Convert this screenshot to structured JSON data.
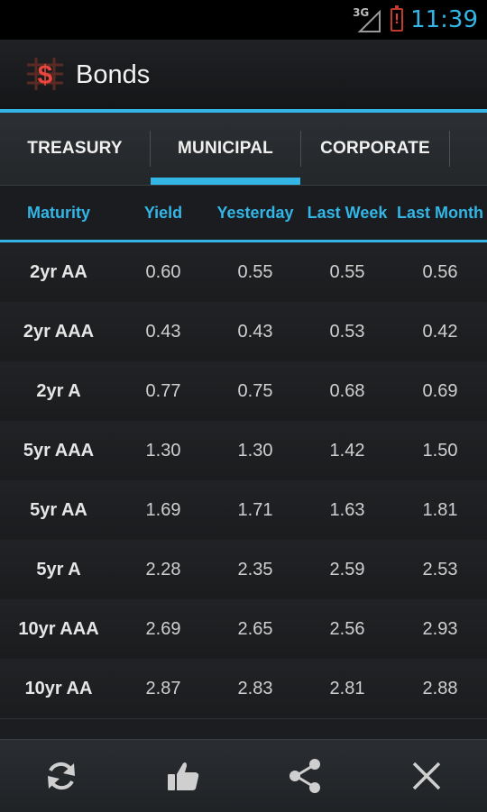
{
  "status_bar": {
    "network": "3G",
    "battery_mark": "!",
    "time": "11:39"
  },
  "app": {
    "title": "Bonds",
    "logo_symbol": "$"
  },
  "tabs": [
    {
      "label": "TREASURY",
      "selected": false
    },
    {
      "label": "MUNICIPAL",
      "selected": true
    },
    {
      "label": "CORPORATE",
      "selected": false
    }
  ],
  "table": {
    "columns": [
      "Maturity",
      "Yield",
      "Yesterday",
      "Last Week",
      "Last Month"
    ],
    "rows": [
      {
        "maturity": "2yr AA",
        "yield": "0.60",
        "yesterday": "0.55",
        "last_week": "0.55",
        "last_month": "0.56"
      },
      {
        "maturity": "2yr AAA",
        "yield": "0.43",
        "yesterday": "0.43",
        "last_week": "0.53",
        "last_month": "0.42"
      },
      {
        "maturity": "2yr A",
        "yield": "0.77",
        "yesterday": "0.75",
        "last_week": "0.68",
        "last_month": "0.69"
      },
      {
        "maturity": "5yr AAA",
        "yield": "1.30",
        "yesterday": "1.30",
        "last_week": "1.42",
        "last_month": "1.50"
      },
      {
        "maturity": "5yr AA",
        "yield": "1.69",
        "yesterday": "1.71",
        "last_week": "1.63",
        "last_month": "1.81"
      },
      {
        "maturity": "5yr A",
        "yield": "2.28",
        "yesterday": "2.35",
        "last_week": "2.59",
        "last_month": "2.53"
      },
      {
        "maturity": "10yr AAA",
        "yield": "2.69",
        "yesterday": "2.65",
        "last_week": "2.56",
        "last_month": "2.93"
      },
      {
        "maturity": "10yr AA",
        "yield": "2.87",
        "yesterday": "2.83",
        "last_week": "2.81",
        "last_month": "2.88"
      }
    ]
  },
  "bottom_bar": {
    "icons": [
      "refresh-icon",
      "thumbs-up-icon",
      "share-icon",
      "close-icon"
    ]
  },
  "colors": {
    "accent": "#33b5e5",
    "background": "#1b1d20",
    "battery_alert": "#e0433a"
  }
}
